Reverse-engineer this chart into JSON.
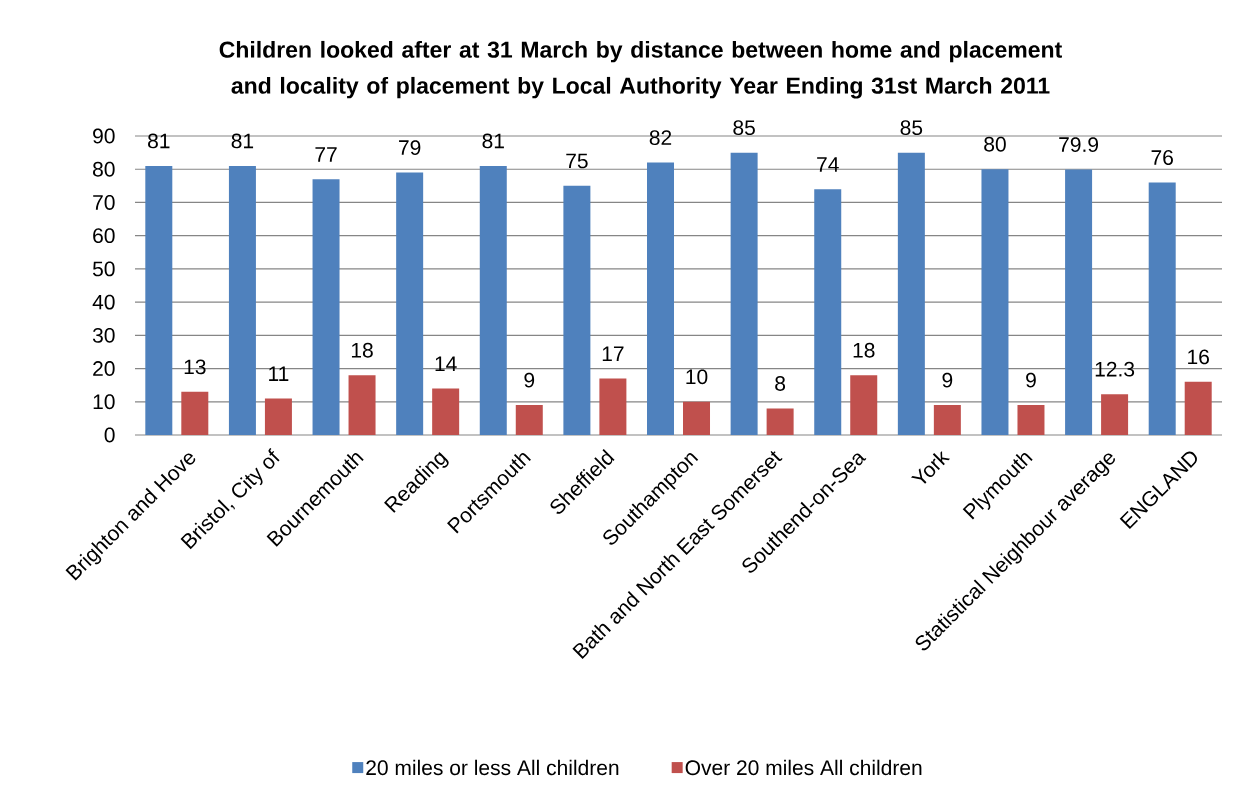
{
  "chart_data": {
    "type": "bar",
    "title": "Children looked after at 31 March by distance between home and placement and locality of placement by Local Authority Year Ending 31st March 2011",
    "categories": [
      "Brighton and Hove",
      "Bristol, City of",
      "Bournemouth",
      "Reading",
      "Portsmouth",
      "Sheffield",
      "Southampton",
      "Bath and North East Somerset",
      "Southend-on-Sea",
      "York",
      "Plymouth",
      "Statistical Neighbour average",
      "ENGLAND"
    ],
    "series": [
      {
        "name": "20 miles or less All children",
        "color": "#4f81bd",
        "values": [
          81,
          81,
          77,
          79,
          81,
          75,
          82,
          85,
          74,
          85,
          80,
          79.9,
          76
        ]
      },
      {
        "name": "Over 20 miles All children",
        "color": "#c0504d",
        "values": [
          13,
          11,
          18,
          14,
          9,
          17,
          10,
          8,
          18,
          9,
          9,
          12.3,
          16
        ]
      }
    ],
    "ylim": [
      0,
      90
    ],
    "yticks": [
      0,
      10,
      20,
      30,
      40,
      50,
      60,
      70,
      80,
      90
    ],
    "grid": "y",
    "legend": "bottom",
    "data_labels": true
  }
}
